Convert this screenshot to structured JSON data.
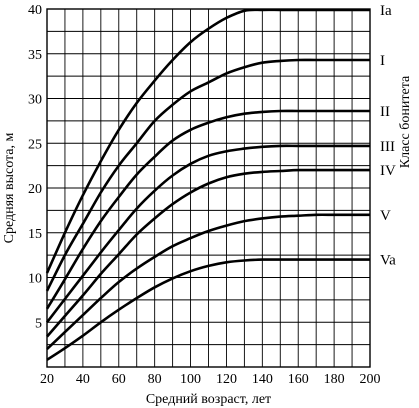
{
  "chart_data": {
    "type": "line",
    "title": "",
    "xlabel": "Средний возраст, лет",
    "ylabel": "Средняя высота, м",
    "right_label": "Класс бонитета",
    "xlim": [
      20,
      200
    ],
    "ylim": [
      0,
      40
    ],
    "xticks": [
      20,
      40,
      60,
      80,
      100,
      120,
      140,
      160,
      180,
      200
    ],
    "yticks": [
      5,
      10,
      15,
      20,
      25,
      30,
      35,
      40
    ],
    "grid": true,
    "legend": "right",
    "x": [
      20,
      30,
      40,
      50,
      60,
      70,
      80,
      90,
      100,
      110,
      120,
      130,
      140,
      150,
      160,
      170,
      180,
      190,
      200
    ],
    "series": [
      {
        "name": "Ia",
        "values": [
          10.5,
          15.0,
          19.2,
          23.0,
          26.5,
          29.5,
          32.0,
          34.3,
          36.3,
          37.8,
          39.0,
          39.8,
          40.4,
          40.8,
          41.0,
          41.0,
          41.0,
          41.0,
          41.0
        ]
      },
      {
        "name": "I",
        "values": [
          8.5,
          12.5,
          16.0,
          19.5,
          22.5,
          25.0,
          27.5,
          29.3,
          30.8,
          31.8,
          32.8,
          33.5,
          34.0,
          34.2,
          34.3,
          34.3,
          34.3,
          34.3,
          34.3
        ]
      },
      {
        "name": "II",
        "values": [
          6.5,
          9.8,
          13.2,
          16.3,
          19.0,
          21.5,
          23.5,
          25.3,
          26.5,
          27.3,
          27.9,
          28.3,
          28.5,
          28.6,
          28.6,
          28.6,
          28.6,
          28.6,
          28.6
        ]
      },
      {
        "name": "III",
        "values": [
          5.0,
          7.6,
          10.2,
          12.8,
          15.3,
          17.7,
          19.7,
          21.4,
          22.7,
          23.6,
          24.1,
          24.4,
          24.6,
          24.7,
          24.7,
          24.7,
          24.7,
          24.7,
          24.7
        ]
      },
      {
        "name": "IV",
        "values": [
          3.4,
          5.7,
          8.0,
          10.4,
          12.6,
          14.8,
          16.6,
          18.2,
          19.5,
          20.5,
          21.2,
          21.6,
          21.8,
          21.9,
          22.0,
          22.0,
          22.0,
          22.0,
          22.0
        ]
      },
      {
        "name": "V",
        "values": [
          2.0,
          3.9,
          5.8,
          7.7,
          9.5,
          11.0,
          12.3,
          13.5,
          14.4,
          15.2,
          15.8,
          16.3,
          16.6,
          16.8,
          16.9,
          17.0,
          17.0,
          17.0,
          17.0
        ]
      },
      {
        "name": "Va",
        "values": [
          0.8,
          2.1,
          3.5,
          5.0,
          6.4,
          7.7,
          8.9,
          9.9,
          10.7,
          11.3,
          11.7,
          11.9,
          12.0,
          12.0,
          12.0,
          12.0,
          12.0,
          12.0,
          12.0
        ]
      }
    ]
  }
}
